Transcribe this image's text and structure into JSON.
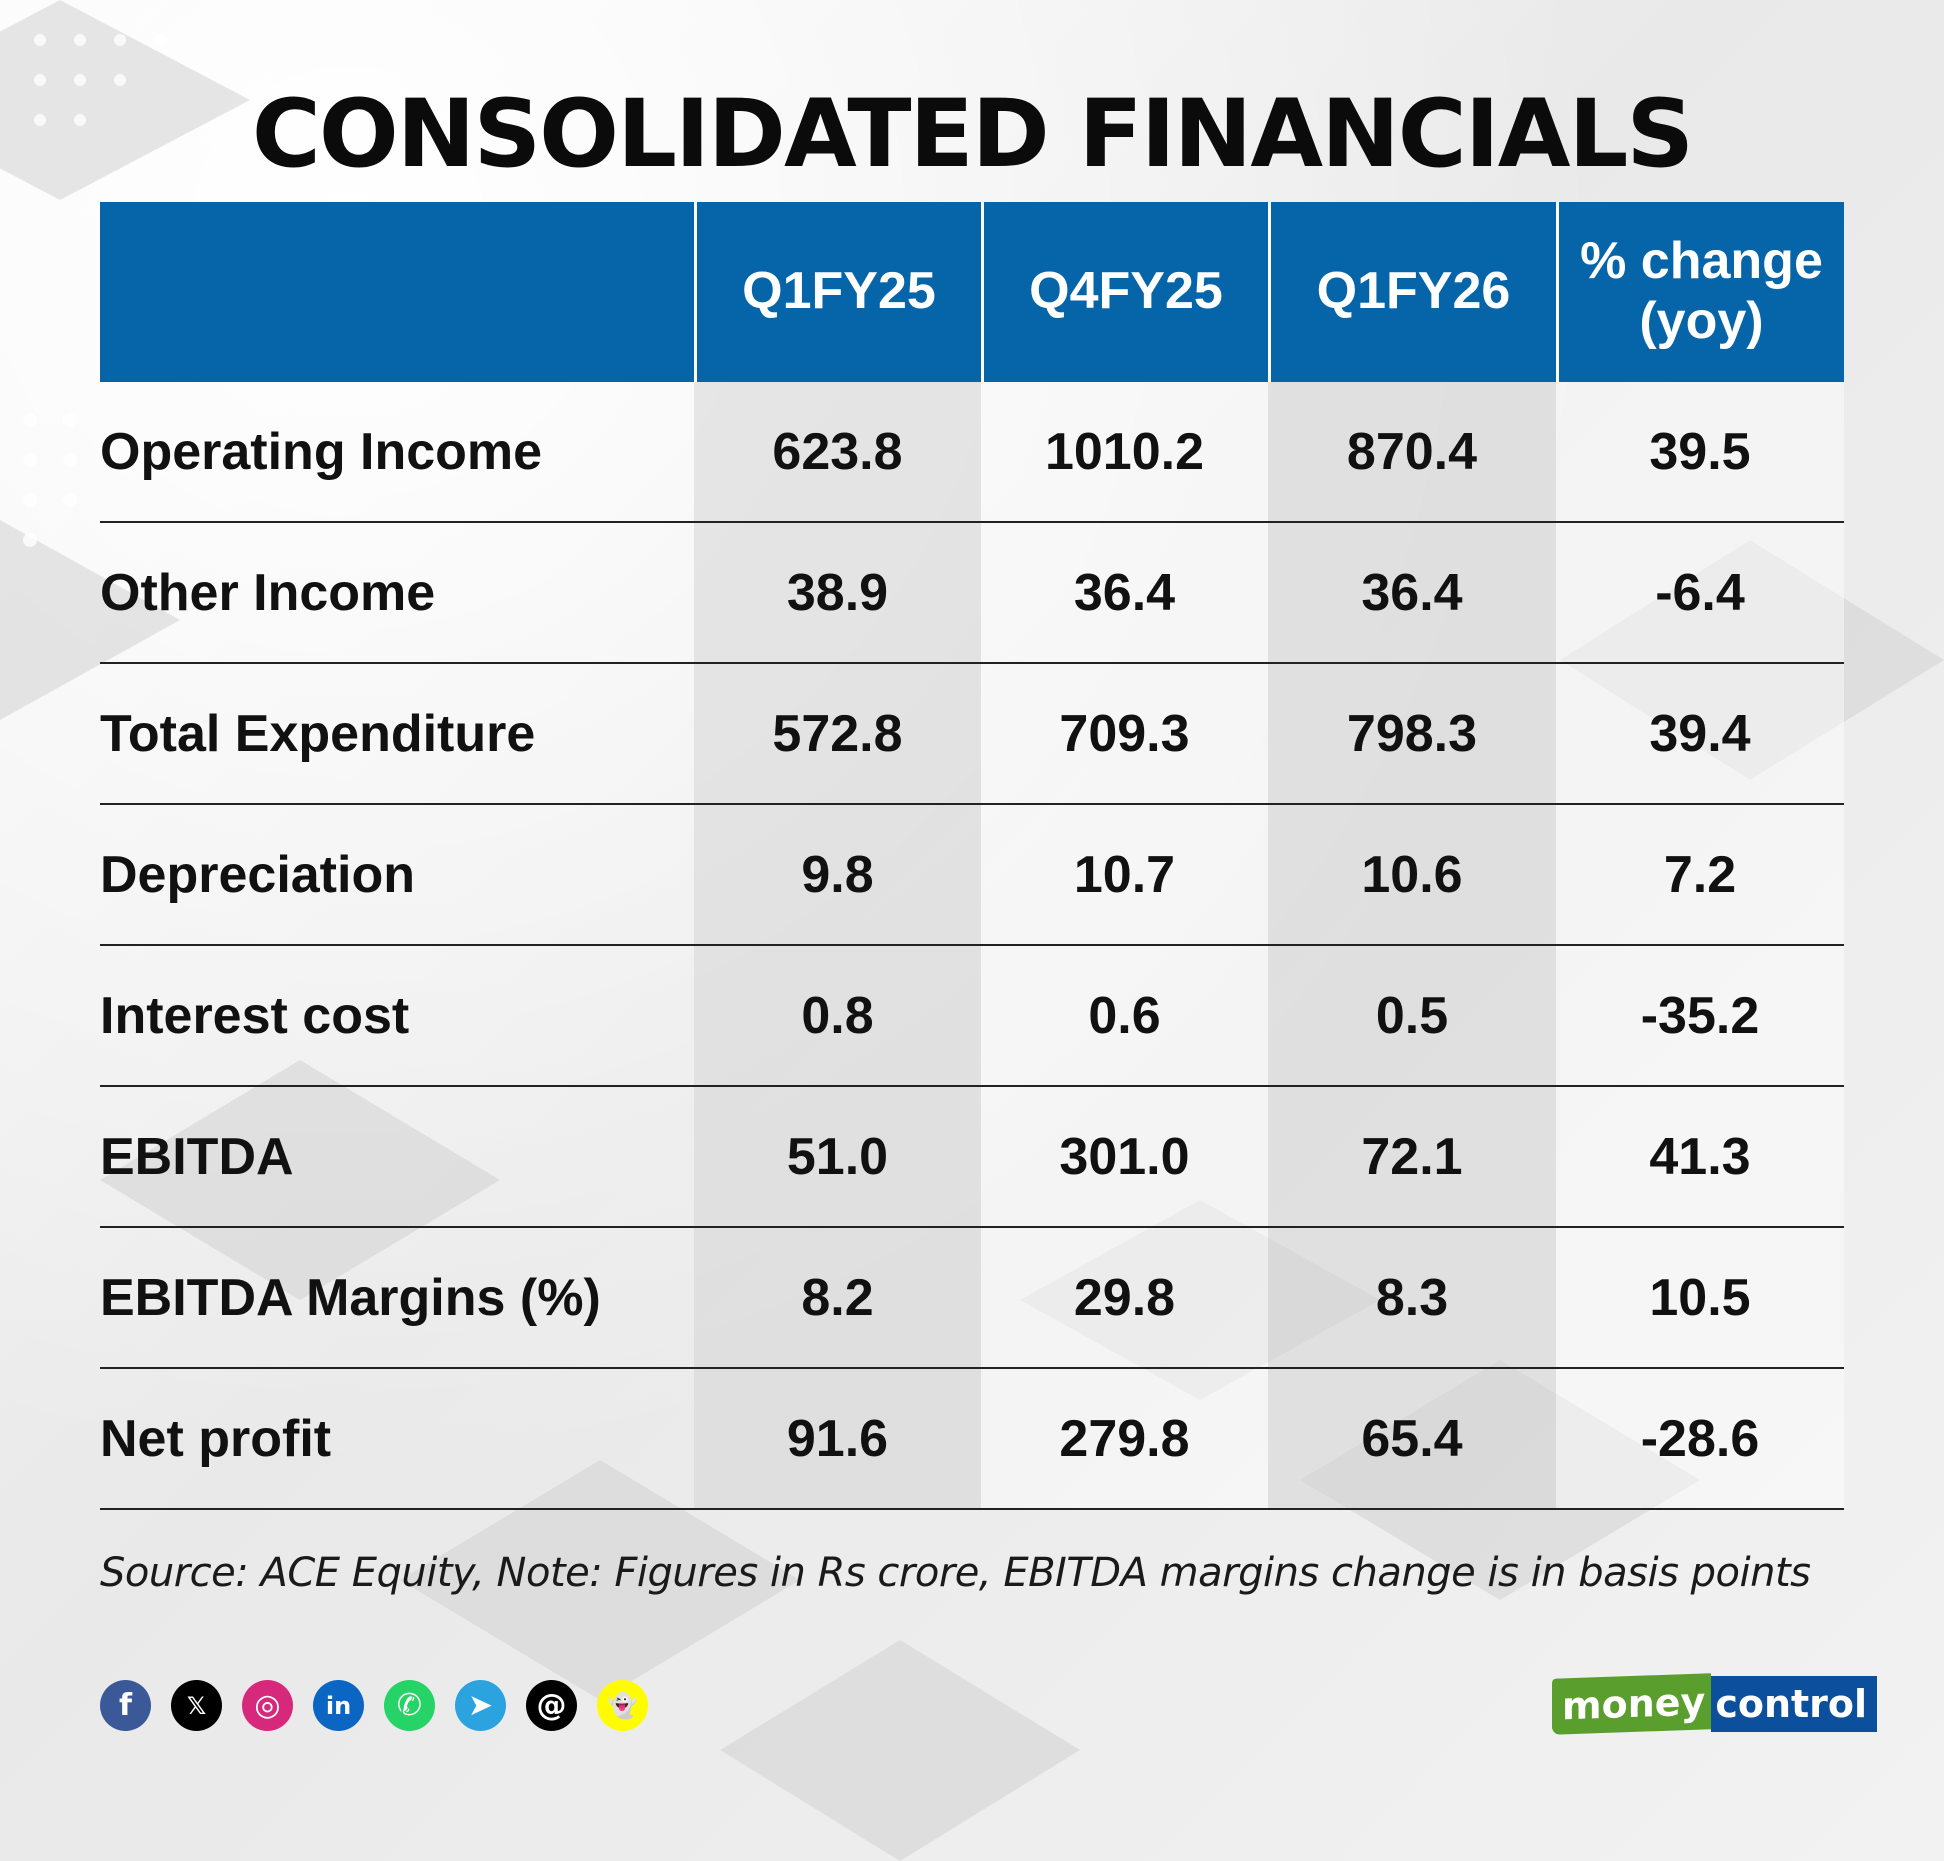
{
  "title": "CONSOLIDATED FINANCIALS",
  "table": {
    "headers": [
      "",
      "Q1FY25",
      "Q4FY25",
      "Q1FY26",
      "% change\n(yoy)"
    ],
    "rows": [
      {
        "label": "Operating Income",
        "values": [
          "623.8",
          "1010.2",
          "870.4",
          "39.5"
        ]
      },
      {
        "label": "Other Income",
        "values": [
          "38.9",
          "36.4",
          "36.4",
          "-6.4"
        ]
      },
      {
        "label": "Total Expenditure",
        "values": [
          "572.8",
          "709.3",
          "798.3",
          "39.4"
        ]
      },
      {
        "label": "Depreciation",
        "values": [
          "9.8",
          "10.7",
          "10.6",
          "7.2"
        ]
      },
      {
        "label": "Interest cost",
        "values": [
          "0.8",
          "0.6",
          "0.5",
          "-35.2"
        ]
      },
      {
        "label": "EBITDA",
        "values": [
          "51.0",
          "301.0",
          "72.1",
          "41.3"
        ]
      },
      {
        "label": "EBITDA Margins (%)",
        "values": [
          "8.2",
          "29.8",
          "8.3",
          "10.5"
        ]
      },
      {
        "label": "Net profit",
        "values": [
          "91.6",
          "279.8",
          "65.4",
          "-28.6"
        ]
      }
    ]
  },
  "source": "Source: ACE Equity, Note: Figures in Rs crore, EBITDA margins change is in basis points",
  "social_icons": [
    {
      "name": "facebook-icon",
      "glyph": "f",
      "color": "#3b5998"
    },
    {
      "name": "x-icon",
      "glyph": "𝕏",
      "color": "#000000"
    },
    {
      "name": "instagram-icon",
      "glyph": "◎",
      "color": "#d6297b"
    },
    {
      "name": "linkedin-icon",
      "glyph": "in",
      "color": "#0a66c2"
    },
    {
      "name": "whatsapp-icon",
      "glyph": "✆",
      "color": "#25d366"
    },
    {
      "name": "telegram-icon",
      "glyph": "➤",
      "color": "#2aa3df"
    },
    {
      "name": "threads-icon",
      "glyph": "@",
      "color": "#000000"
    },
    {
      "name": "snapchat-icon",
      "glyph": "👻",
      "color": "#fffc00"
    }
  ],
  "logo": {
    "part1": "money",
    "part2": "control"
  },
  "colors": {
    "header_bg": "#0665a9",
    "logo_green": "#5a9e2d",
    "logo_blue": "#0c4f9c"
  }
}
